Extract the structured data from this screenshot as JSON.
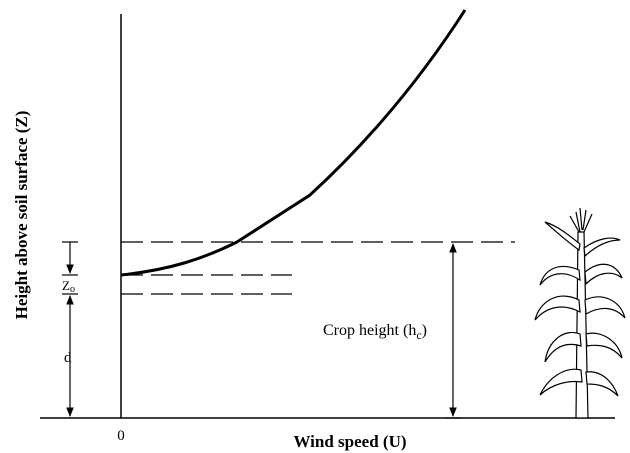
{
  "axes": {
    "y_label": "Height above soil surface (Z)",
    "x_label": "Wind speed (U)",
    "origin": "0"
  },
  "annotations": {
    "z0": {
      "text": "Z",
      "sub": "o"
    },
    "d": "d",
    "crop_height": {
      "text": "Crop height (h",
      "sub": "c",
      "close": ")"
    }
  }
}
